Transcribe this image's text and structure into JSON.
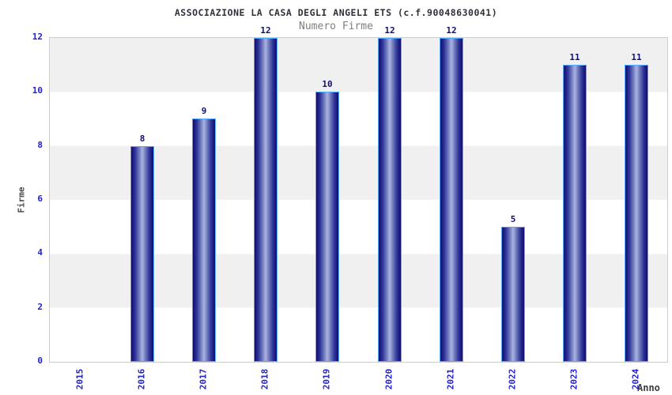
{
  "chart_data": {
    "type": "bar",
    "title": "ASSOCIAZIONE LA CASA DEGLI ANGELI ETS (c.f.90048630041)",
    "subtitle": "Numero Firme",
    "xlabel": "Anno",
    "ylabel": "Firme",
    "categories": [
      "2015",
      "2016",
      "2017",
      "2018",
      "2019",
      "2020",
      "2021",
      "2022",
      "2023",
      "2024"
    ],
    "values": [
      0,
      8,
      9,
      12,
      10,
      12,
      12,
      5,
      11,
      11
    ],
    "bar_value_labels": [
      "",
      "8",
      "9",
      "12",
      "10",
      "12",
      "12",
      "5",
      "11",
      "11"
    ],
    "ylim": [
      0,
      12
    ],
    "yticks": [
      0,
      2,
      4,
      6,
      8,
      10,
      12
    ],
    "grid": "alternating-horizontal-bands-every-2-units",
    "legend": "none",
    "x_tick_rotation_degrees": 90,
    "colors": {
      "tick_label": "#2222cc",
      "bar_edge_dark": "#111166",
      "bar_center_light": "#aab3e0",
      "bar_border": "#55aaff",
      "band_gray": "#f0f0f0",
      "band_white": "#ffffff",
      "title_text": "#30303a",
      "subtitle_text": "#7f7f7f",
      "y_axis_label_text": "#4d4d4d",
      "x_axis_label_text": "#3c3c3c",
      "bar_value_label": "#101073",
      "plot_border": "#cccccc"
    }
  }
}
